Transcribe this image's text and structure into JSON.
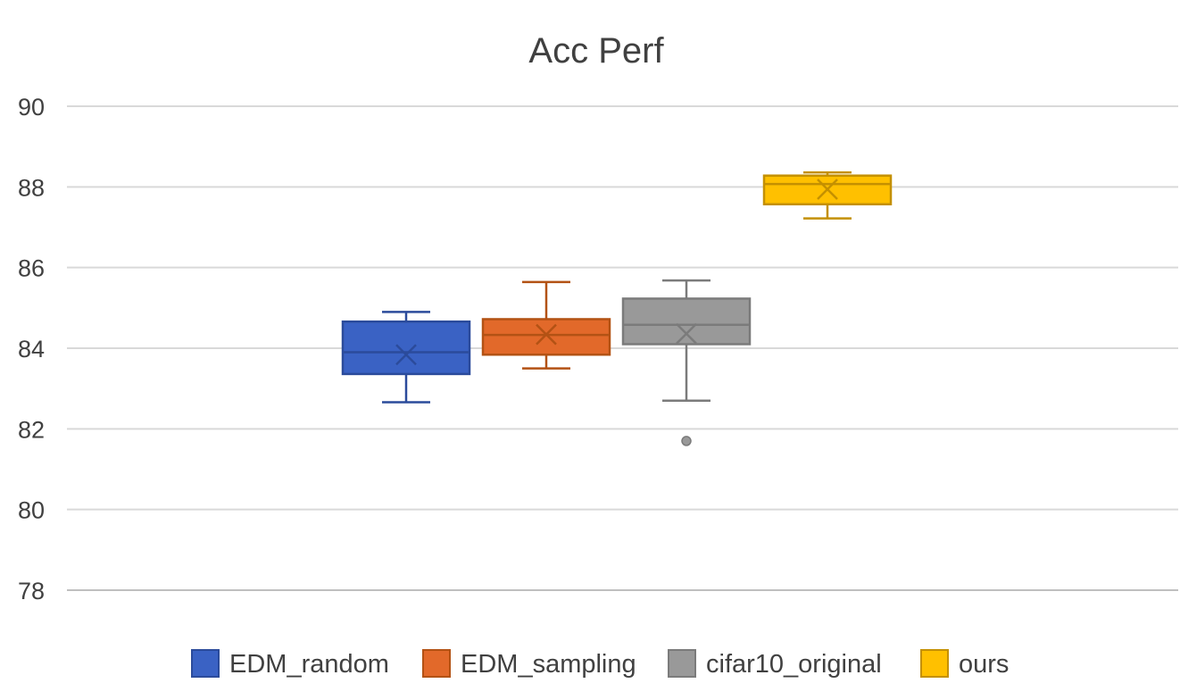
{
  "chart_data": {
    "type": "box",
    "title": "Acc Perf",
    "xlabel": "",
    "ylabel": "",
    "ylim": [
      78,
      90
    ],
    "yticks": [
      78,
      80,
      82,
      84,
      86,
      88,
      90
    ],
    "grid": true,
    "legend_position": "bottom",
    "series": [
      {
        "name": "EDM_random",
        "color": "#3a62c4",
        "edge": "#2b4b9b",
        "min": 82.66,
        "q1": 83.36,
        "median": 83.9,
        "q3": 84.66,
        "max": 84.9,
        "mean": 83.84,
        "outliers": []
      },
      {
        "name": "EDM_sampling",
        "color": "#e2692a",
        "edge": "#b35214",
        "min": 83.5,
        "q1": 83.84,
        "median": 84.33,
        "q3": 84.72,
        "max": 85.64,
        "mean": 84.34,
        "outliers": []
      },
      {
        "name": "cifar10_original",
        "color": "#999999",
        "edge": "#7b7b7b",
        "min": 82.7,
        "q1": 84.1,
        "median": 84.58,
        "q3": 85.23,
        "max": 85.68,
        "mean": 84.36,
        "outliers": [
          81.7
        ]
      },
      {
        "name": "ours",
        "color": "#ffc000",
        "edge": "#c49000",
        "min": 87.22,
        "q1": 87.57,
        "median": 88.07,
        "q3": 88.28,
        "max": 88.36,
        "mean": 87.94,
        "outliers": []
      }
    ]
  }
}
